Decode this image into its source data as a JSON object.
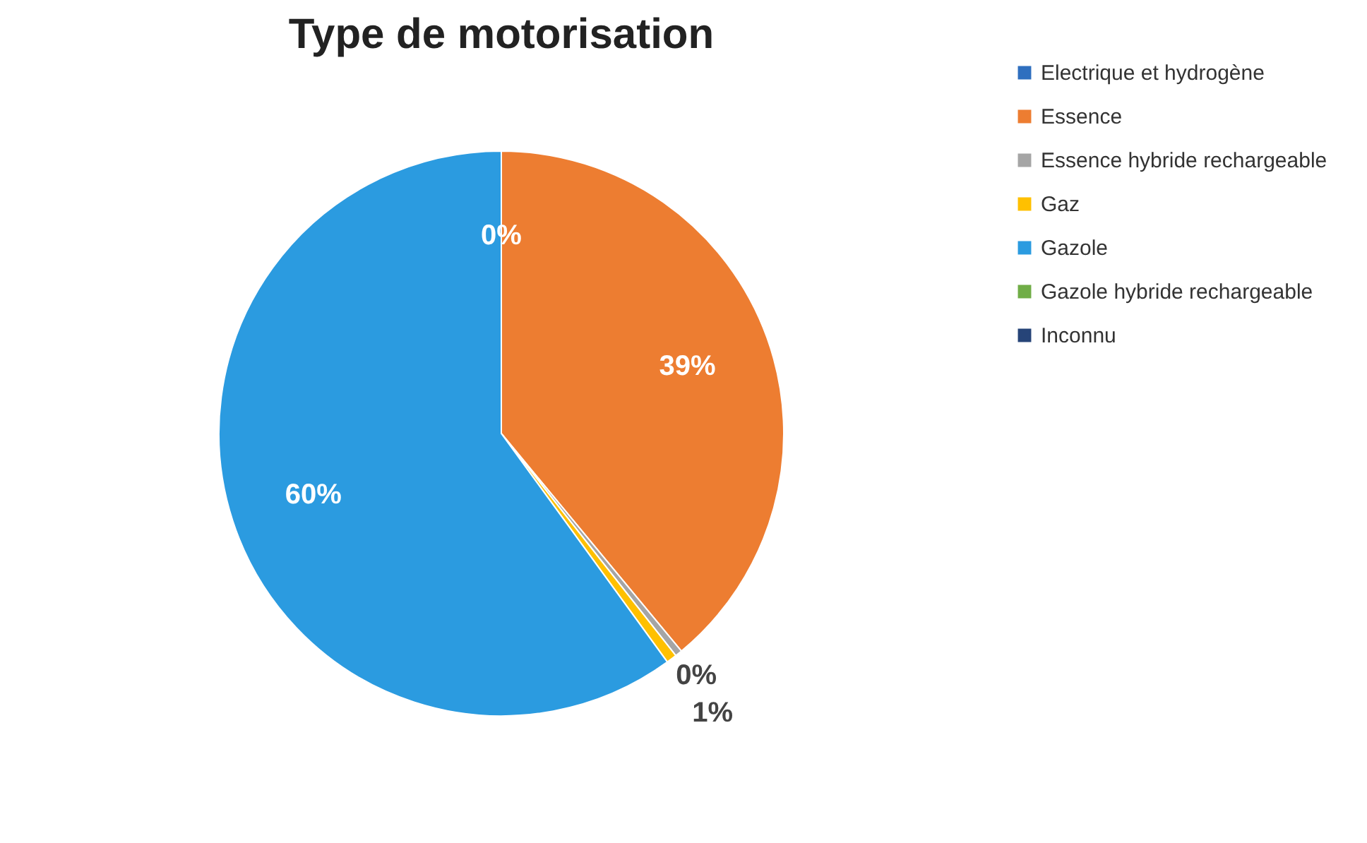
{
  "chart_data": {
    "type": "pie",
    "title": "Type de motorisation",
    "categories": [
      "Electrique et hydrogène",
      "Essence",
      "Essence hybride rechargeable",
      "Gaz",
      "Gazole",
      "Gazole hybride rechargeable",
      "Inconnu"
    ],
    "values": [
      0,
      39,
      0.4,
      0.6,
      60,
      0,
      0
    ],
    "colors": [
      "#2f6fbf",
      "#ed7d31",
      "#a5a5a5",
      "#ffc000",
      "#2b9be0",
      "#70ad47",
      "#264478"
    ],
    "value_labels": [
      "0%",
      "39%",
      "0%",
      "1%",
      "60%",
      null,
      null
    ],
    "legend": "right"
  }
}
